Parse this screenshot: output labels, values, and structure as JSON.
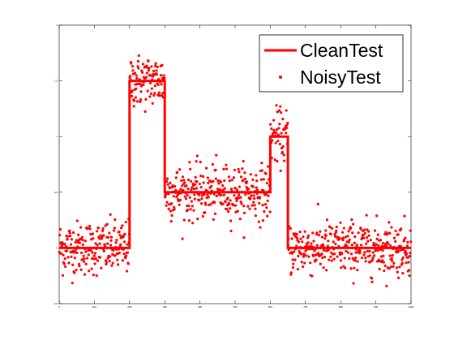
{
  "chart_data": {
    "type": "line",
    "title": "",
    "xlabel": "",
    "ylabel": "",
    "xlim": [
      0,
      1000
    ],
    "ylim": [
      -0.5,
      2.0
    ],
    "grid": false,
    "legend_position": "top-right",
    "x_ticks": [
      "0",
      "100",
      "200",
      "300",
      "400",
      "500",
      "600",
      "700",
      "800",
      "900",
      "1000"
    ],
    "y_ticks": [
      "-0.5",
      "0",
      "0.5",
      "1",
      "1.5",
      "2"
    ],
    "series": [
      {
        "name": "CleanTest",
        "style": "line",
        "color": "#ff0000",
        "x": [
          0,
          200,
          200,
          300,
          300,
          600,
          600,
          650,
          650,
          1000
        ],
        "y": [
          0,
          0,
          1.5,
          1.5,
          0.5,
          0.5,
          1.0,
          1.0,
          0,
          0
        ]
      },
      {
        "name": "NoisyTest",
        "style": "markers",
        "color": "#ff0000",
        "noise_std": 0.12,
        "n_points": 1000
      }
    ]
  }
}
